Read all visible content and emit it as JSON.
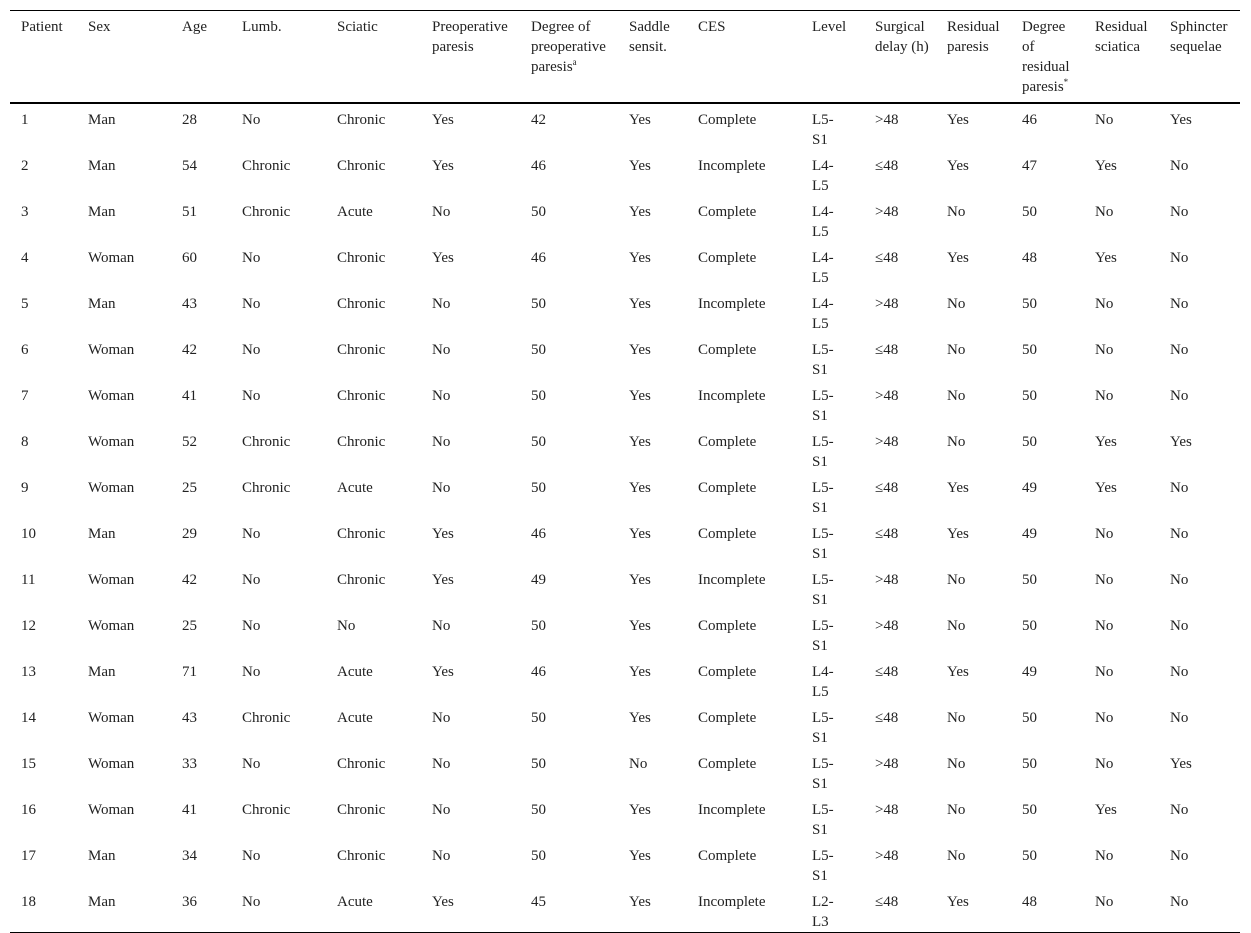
{
  "table": {
    "headers": [
      "Patient",
      "Sex",
      "Age",
      "Lumb.",
      "Sciatic",
      "Preoperative paresis",
      {
        "text": "Degree of preoperative paresis",
        "sup": "a"
      },
      "Saddle sensit.",
      "CES",
      "Level",
      "Surgical delay (h)",
      "Residual paresis",
      {
        "text": "Degree of residual paresis",
        "sup": "*"
      },
      "Residual sciatica",
      "Sphincter sequelae"
    ],
    "rows": [
      [
        "1",
        "Man",
        "28",
        "No",
        "Chronic",
        "Yes",
        "42",
        "Yes",
        "Complete",
        "L5-S1",
        ">48",
        "Yes",
        "46",
        "No",
        "Yes"
      ],
      [
        "2",
        "Man",
        "54",
        "Chronic",
        "Chronic",
        "Yes",
        "46",
        "Yes",
        "Incomplete",
        "L4-L5",
        "≤48",
        "Yes",
        "47",
        "Yes",
        "No"
      ],
      [
        "3",
        "Man",
        "51",
        "Chronic",
        "Acute",
        "No",
        "50",
        "Yes",
        "Complete",
        "L4-L5",
        ">48",
        "No",
        "50",
        "No",
        "No"
      ],
      [
        "4",
        "Woman",
        "60",
        "No",
        "Chronic",
        "Yes",
        "46",
        "Yes",
        "Complete",
        "L4-L5",
        "≤48",
        "Yes",
        "48",
        "Yes",
        "No"
      ],
      [
        "5",
        "Man",
        "43",
        "No",
        "Chronic",
        "No",
        "50",
        "Yes",
        "Incomplete",
        "L4-L5",
        ">48",
        "No",
        "50",
        "No",
        "No"
      ],
      [
        "6",
        "Woman",
        "42",
        "No",
        "Chronic",
        "No",
        "50",
        "Yes",
        "Complete",
        "L5-S1",
        "≤48",
        "No",
        "50",
        "No",
        "No"
      ],
      [
        "7",
        "Woman",
        "41",
        "No",
        "Chronic",
        "No",
        "50",
        "Yes",
        "Incomplete",
        "L5-S1",
        ">48",
        "No",
        "50",
        "No",
        "No"
      ],
      [
        "8",
        "Woman",
        "52",
        "Chronic",
        "Chronic",
        "No",
        "50",
        "Yes",
        "Complete",
        "L5-S1",
        ">48",
        "No",
        "50",
        "Yes",
        "Yes"
      ],
      [
        "9",
        "Woman",
        "25",
        "Chronic",
        "Acute",
        "No",
        "50",
        "Yes",
        "Complete",
        "L5-S1",
        "≤48",
        "Yes",
        "49",
        "Yes",
        "No"
      ],
      [
        "10",
        "Man",
        "29",
        "No",
        "Chronic",
        "Yes",
        "46",
        "Yes",
        "Complete",
        "L5-S1",
        "≤48",
        "Yes",
        "49",
        "No",
        "No"
      ],
      [
        "11",
        "Woman",
        "42",
        "No",
        "Chronic",
        "Yes",
        "49",
        "Yes",
        "Incomplete",
        "L5-S1",
        ">48",
        "No",
        "50",
        "No",
        "No"
      ],
      [
        "12",
        "Woman",
        "25",
        "No",
        "No",
        "No",
        "50",
        "Yes",
        "Complete",
        "L5-S1",
        ">48",
        "No",
        "50",
        "No",
        "No"
      ],
      [
        "13",
        "Man",
        "71",
        "No",
        "Acute",
        "Yes",
        "46",
        "Yes",
        "Complete",
        "L4-L5",
        "≤48",
        "Yes",
        "49",
        "No",
        "No"
      ],
      [
        "14",
        "Woman",
        "43",
        "Chronic",
        "Acute",
        "No",
        "50",
        "Yes",
        "Complete",
        "L5-S1",
        "≤48",
        "No",
        "50",
        "No",
        "No"
      ],
      [
        "15",
        "Woman",
        "33",
        "No",
        "Chronic",
        "No",
        "50",
        "No",
        "Complete",
        "L5-S1",
        ">48",
        "No",
        "50",
        "No",
        "Yes"
      ],
      [
        "16",
        "Woman",
        "41",
        "Chronic",
        "Chronic",
        "No",
        "50",
        "Yes",
        "Incomplete",
        "L5-S1",
        ">48",
        "No",
        "50",
        "Yes",
        "No"
      ],
      [
        "17",
        "Man",
        "34",
        "No",
        "Chronic",
        "No",
        "50",
        "Yes",
        "Complete",
        "L5-S1",
        ">48",
        "No",
        "50",
        "No",
        "No"
      ],
      [
        "18",
        "Man",
        "36",
        "No",
        "Acute",
        "Yes",
        "45",
        "Yes",
        "Incomplete",
        "L2-L3",
        "≤48",
        "Yes",
        "48",
        "No",
        "No"
      ]
    ]
  }
}
